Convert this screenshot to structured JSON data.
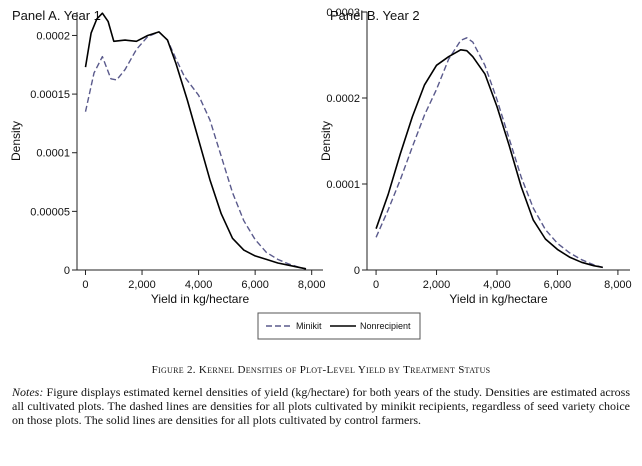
{
  "figure_caption": "Figure 2. Kernel Densities of Plot-Level Yield by Treatment Status",
  "notes": {
    "label": "Notes:",
    "text": "Figure displays estimated kernel densities of yield (kg/hectare) for both years of the study. Densities are estimated across all cultivated plots. The dashed lines are densities for all plots cultivated by minikit recipients, regardless of seed variety choice on those plots. The solid lines are densities for all plots cultivated by control farmers."
  },
  "legend": {
    "items": [
      {
        "label": "Minikit",
        "style": "dashed",
        "color": "#5a5a8c"
      },
      {
        "label": "Nonrecipient",
        "style": "solid",
        "color": "#000000"
      }
    ]
  },
  "chart_data": [
    {
      "type": "line",
      "title": "Panel A. Year 1",
      "xlabel": "Yield in kg/hectare",
      "ylabel": "Density",
      "xlim": [
        -300,
        8400
      ],
      "ylim": [
        0,
        0.00022
      ],
      "xticks": [
        0,
        2000,
        4000,
        6000,
        8000
      ],
      "xtick_labels": [
        "0",
        "2,000",
        "4,000",
        "6,000",
        "8,000"
      ],
      "yticks": [
        0,
        5e-05,
        0.0001,
        0.00015,
        0.0002
      ],
      "ytick_labels": [
        "0",
        "0.00005",
        "0.0001",
        "0.00015",
        "0.0002"
      ],
      "series": [
        {
          "name": "Minikit",
          "style": "dashed",
          "color": "#5a5a8c",
          "x": [
            0,
            300,
            600,
            900,
            1100,
            1400,
            1800,
            2200,
            2600,
            2900,
            3200,
            3500,
            4000,
            4400,
            4800,
            5200,
            5600,
            6000,
            6400,
            6800,
            7200,
            7600,
            7800
          ],
          "y": [
            0.000135,
            0.000168,
            0.000182,
            0.000163,
            0.000162,
            0.000171,
            0.000188,
            0.000199,
            0.000203,
            0.000196,
            0.00018,
            0.000165,
            0.000149,
            0.000128,
            9.7e-05,
            6.6e-05,
            4.2e-05,
            2.6e-05,
            1.5e-05,
            9e-06,
            5e-06,
            2e-06,
            1e-06
          ]
        },
        {
          "name": "Nonrecipient",
          "style": "solid",
          "color": "#000000",
          "x": [
            0,
            200,
            400,
            600,
            800,
            1000,
            1400,
            1800,
            2200,
            2600,
            2900,
            3200,
            3600,
            4000,
            4400,
            4800,
            5200,
            5600,
            6000,
            6400,
            6800,
            7200,
            7600,
            7800
          ],
          "y": [
            0.000173,
            0.000202,
            0.000214,
            0.000219,
            0.000212,
            0.000195,
            0.000196,
            0.000195,
            0.0002,
            0.000203,
            0.000196,
            0.000176,
            0.000145,
            0.000111,
            7.7e-05,
            4.8e-05,
            2.7e-05,
            1.7e-05,
            1.2e-05,
            9e-06,
            6e-06,
            4e-06,
            2e-06,
            1e-06
          ]
        }
      ]
    },
    {
      "type": "line",
      "title": "Panel B. Year 2",
      "xlabel": "Yield in kg/hectare",
      "ylabel": "Density",
      "xlim": [
        -300,
        8400
      ],
      "ylim": [
        0,
        0.0003
      ],
      "xticks": [
        0,
        2000,
        4000,
        6000,
        8000
      ],
      "xtick_labels": [
        "0",
        "2,000",
        "4,000",
        "6,000",
        "8,000"
      ],
      "yticks": [
        0,
        0.0001,
        0.0002,
        0.0003
      ],
      "ytick_labels": [
        "0",
        "0.0001",
        "0.0002",
        "0.0003"
      ],
      "series": [
        {
          "name": "Minikit",
          "style": "dashed",
          "color": "#5a5a8c",
          "x": [
            0,
            400,
            800,
            1200,
            1600,
            2000,
            2400,
            2800,
            3000,
            3200,
            3600,
            4000,
            4400,
            4800,
            5200,
            5600,
            6000,
            6400,
            6800,
            7200,
            7500
          ],
          "y": [
            3.8e-05,
            7e-05,
            0.000105,
            0.000143,
            0.00018,
            0.00021,
            0.000245,
            0.000267,
            0.00027,
            0.000265,
            0.000238,
            0.000198,
            0.000153,
            0.000108,
            7.2e-05,
            4.7e-05,
            3.1e-05,
            2e-05,
            1.2e-05,
            6e-06,
            3e-06
          ]
        },
        {
          "name": "Nonrecipient",
          "style": "solid",
          "color": "#000000",
          "x": [
            0,
            400,
            800,
            1200,
            1600,
            2000,
            2400,
            2800,
            3000,
            3200,
            3600,
            4000,
            4400,
            4800,
            5200,
            5600,
            6000,
            6400,
            6800,
            7200,
            7500
          ],
          "y": [
            4.8e-05,
            8.8e-05,
            0.000135,
            0.000178,
            0.000215,
            0.000238,
            0.000248,
            0.000256,
            0.000255,
            0.000248,
            0.000228,
            0.00019,
            0.000145,
            9.7e-05,
            5.8e-05,
            3.6e-05,
            2.4e-05,
            1.5e-05,
            9e-06,
            5e-06,
            3e-06
          ]
        }
      ]
    }
  ]
}
